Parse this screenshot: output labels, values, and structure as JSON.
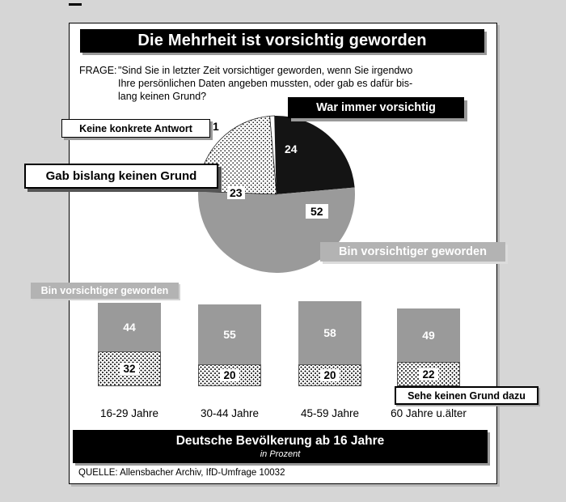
{
  "page": {
    "title": "Die Mehrheit ist vorsichtig geworden",
    "frage_label": "FRAGE:",
    "frage_lines": [
      "\"Sind Sie in letzter Zeit vorsichtiger geworden, wenn Sie irgendwo",
      "Ihre persönlichen Daten angeben mussten, oder gab es dafür bis-",
      "lang keinen Grund?"
    ],
    "footer_bar": {
      "line1": "Deutsche Bevölkerung ab 16 Jahre",
      "line2": "in Prozent"
    },
    "source": "QUELLE: Allensbacher Archiv, IfD-Umfrage 10032"
  },
  "colors": {
    "segment_gray": "#9a9a9a",
    "label_gray": "#b3b3b3",
    "black": "#000000",
    "page_bg": "#d6d6d6",
    "panel_bg": "#ffffff"
  },
  "chart_data": [
    {
      "type": "pie",
      "title": "Die Mehrheit ist vorsichtig geworden",
      "units": "Prozent",
      "start_angle_deg": -95,
      "clockwise": true,
      "segments": [
        {
          "label": "Keine konkrete Antwort",
          "value": 1,
          "style": "white"
        },
        {
          "label": "War immer vorsichtig",
          "value": 24,
          "style": "black"
        },
        {
          "label": "Bin vorsichtiger geworden",
          "value": 52,
          "style": "gray"
        },
        {
          "label": "Gab bislang keinen Grund",
          "value": 23,
          "style": "dotted"
        }
      ]
    },
    {
      "type": "bar",
      "stacked": true,
      "units": "Prozent",
      "categories": [
        "16-29 Jahre",
        "30-44 Jahre",
        "45-59 Jahre",
        "60 Jahre u.älter"
      ],
      "series": [
        {
          "name": "Bin vorsichtiger geworden",
          "style": "gray",
          "values": [
            44,
            55,
            58,
            49
          ]
        },
        {
          "name": "Sehe keinen Grund dazu",
          "style": "dotted",
          "values": [
            32,
            20,
            20,
            22
          ]
        }
      ]
    }
  ]
}
